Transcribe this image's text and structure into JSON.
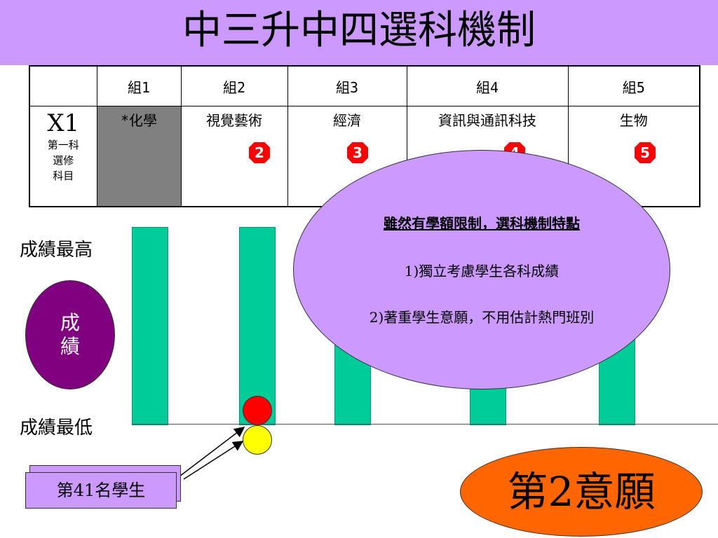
{
  "title": "中三升中四選科機制",
  "table": {
    "headers": [
      "",
      "組1",
      "組2",
      "組3",
      "組4",
      "組5"
    ],
    "row_code": "X1",
    "row_sub": [
      "第一科",
      "選修",
      "科目"
    ],
    "subjects": [
      "*化學",
      "視覺藝術",
      "經濟",
      "資訊與通訊科技",
      "生物"
    ],
    "badges": [
      "2",
      "3",
      "4",
      "5"
    ]
  },
  "labels": {
    "score_high": "成績最高",
    "score_low": "成績最低",
    "score_ellipse": [
      "成",
      "績"
    ]
  },
  "callout": {
    "heading": "雖然有學額限制，選科機制特點",
    "point1": "1)獨立考慮學生各科成績",
    "point2": "2)著重學生意願，不用估計熱門班別"
  },
  "student_label": "第41名學生",
  "choice_label": "第2意願",
  "colors": {
    "title_bar": "#cc99ff",
    "bar": "#00cc99",
    "shaded_cell": "#808080",
    "ellipse_score": "#800080",
    "callout": "#cc99ff",
    "choice": "#ff6600",
    "ball_red": "#ff0000",
    "ball_yellow": "#ffff00",
    "badge": "#ff0000"
  }
}
